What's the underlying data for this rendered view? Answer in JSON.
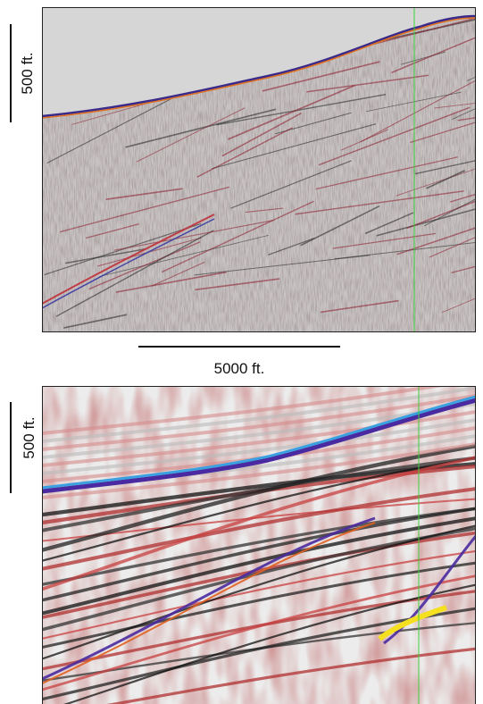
{
  "panels": [
    {
      "vertical_scale": "500 ft.",
      "horizontal_scale": "5000 ft."
    },
    {
      "vertical_scale": "500 ft."
    }
  ]
}
